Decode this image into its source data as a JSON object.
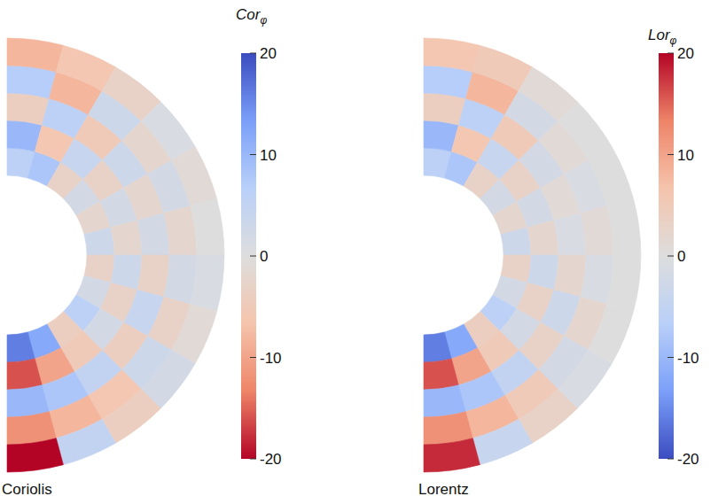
{
  "chart_data": [
    {
      "type": "heatmap",
      "title": "Coriolis",
      "colorbar_label": "Cor",
      "colorbar_label_subscript": "φ",
      "colorbar_range": [
        -20,
        20
      ],
      "colorbar_ticks": [
        20,
        10,
        0,
        -10,
        -20
      ],
      "colors": [
        "#b40426",
        "#ee8468",
        "#f5c4ac",
        "#dddddd",
        "#b9d0f9",
        "#7b9ff9",
        "#3b4cc0"
      ],
      "cells": [
        [
          6,
          8,
          -3,
          2,
          -2,
          3,
          -3,
          2,
          6,
          -4,
          12,
          16
        ],
        [
          10,
          -6,
          4,
          -3,
          2,
          -2,
          3,
          -3,
          2,
          -5,
          -10,
          -16
        ],
        [
          -4,
          6,
          -5,
          3,
          -2,
          2,
          -3,
          4,
          -4,
          5,
          8,
          10
        ],
        [
          7,
          -8,
          3,
          -2,
          2,
          -2,
          2,
          -3,
          3,
          -6,
          -8,
          -12
        ],
        [
          -8,
          -6,
          -3,
          1,
          -1,
          0,
          1,
          -1,
          2,
          -4,
          5,
          -20
        ]
      ]
    },
    {
      "type": "heatmap",
      "title": "Lorentz",
      "colorbar_label": "Lor",
      "colorbar_label_subscript": "φ",
      "colorbar_range": [
        -20,
        20
      ],
      "colorbar_ticks": [
        20,
        10,
        0,
        -10,
        -20
      ],
      "colors": [
        "#3b4cc0",
        "#7b9ff9",
        "#b9d0f9",
        "#dddddd",
        "#f5c4ac",
        "#ee8468",
        "#b40426"
      ],
      "cells": [
        [
          -6,
          -8,
          3,
          -2,
          2,
          -3,
          3,
          -2,
          -6,
          4,
          -12,
          -16
        ],
        [
          -10,
          6,
          -4,
          3,
          -2,
          2,
          -3,
          3,
          -2,
          5,
          10,
          16
        ],
        [
          4,
          -6,
          5,
          -2,
          1,
          -1,
          2,
          -3,
          3,
          -5,
          -8,
          -10
        ],
        [
          -7,
          8,
          -2,
          1,
          -1,
          1,
          -1,
          2,
          -2,
          5,
          8,
          12
        ],
        [
          6,
          5,
          1,
          0,
          0,
          0,
          0,
          0,
          -1,
          3,
          -4,
          18
        ]
      ]
    }
  ]
}
